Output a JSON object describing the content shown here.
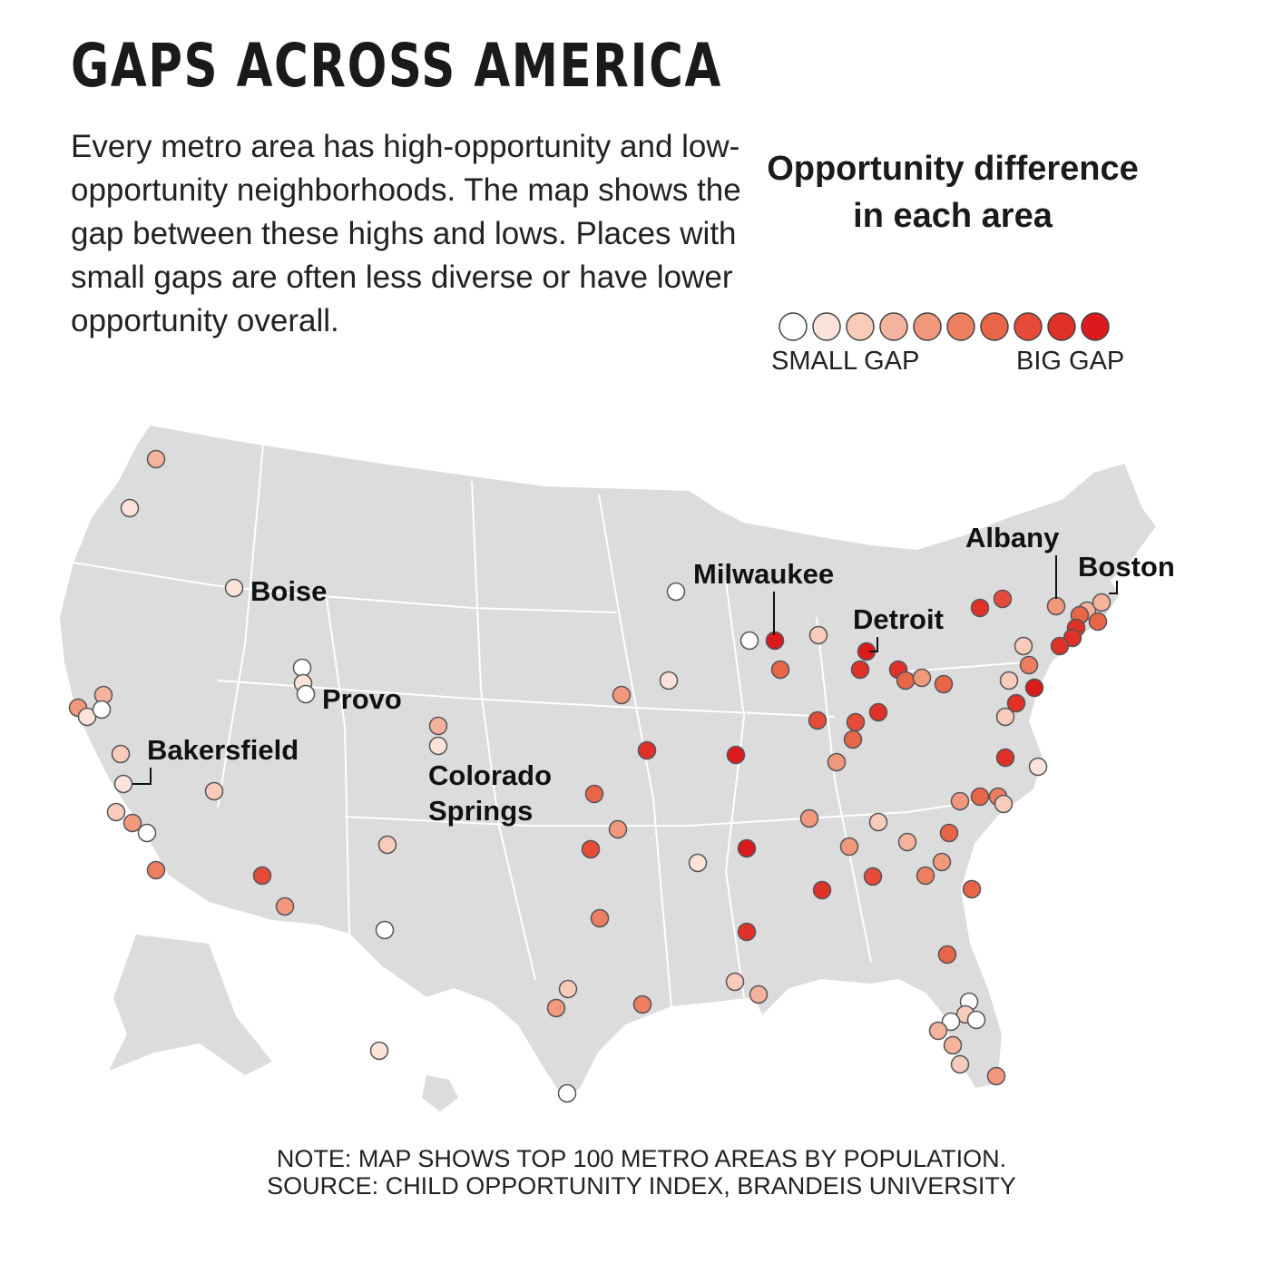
{
  "title": "GAPS ACROSS AMERICA",
  "intro": "Every metro area has high-opportunity and low-opportunity neighborhoods. The map shows the gap between these highs and lows. Places with small gaps are often less diverse or have lower opportunity overall.",
  "legend": {
    "title": "Opportunity difference in each area",
    "small_label": "SMALL GAP",
    "big_label": "BIG GAP",
    "scale_colors": [
      "#ffffff",
      "#fbe3da",
      "#f8cbbb",
      "#f5b29c",
      "#f1987d",
      "#ed7f60",
      "#e96548",
      "#e54b38",
      "#e03128",
      "#dc1a1e"
    ]
  },
  "labels": {
    "boise": "Boise",
    "provo": "Provo",
    "bakersfield": "Bakersfield",
    "colorado_springs_1": "Colorado",
    "colorado_springs_2": "Springs",
    "milwaukee": "Milwaukee",
    "detroit": "Detroit",
    "albany": "Albany",
    "boston": "Boston"
  },
  "note_line1": "NOTE: MAP SHOWS TOP 100 METRO AREAS BY POPULATION.",
  "note_line2": "SOURCE: CHILD OPPORTUNITY INDEX, BRANDEIS UNIVERSITY"
}
